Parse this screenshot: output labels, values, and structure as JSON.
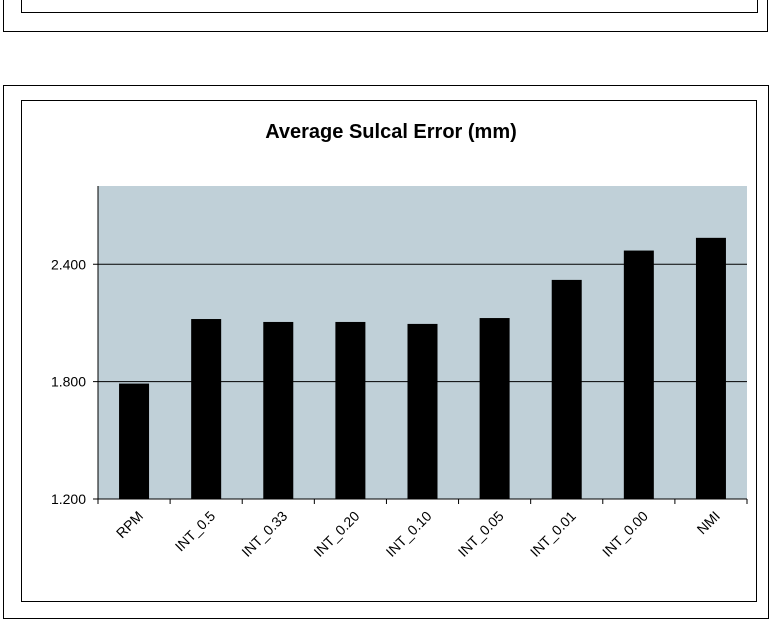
{
  "chart_data": {
    "type": "bar",
    "title": "Average Sulcal Error (mm)",
    "xlabel": "",
    "ylabel": "",
    "categories": [
      "RPM",
      "INT_0.5",
      "INT_0.33",
      "INT_0.20",
      "INT_0.10",
      "INT_0.05",
      "INT_0.01",
      "INT_0.00",
      "NMI"
    ],
    "values": [
      1.79,
      2.12,
      2.105,
      2.105,
      2.095,
      2.125,
      2.32,
      2.47,
      2.535
    ],
    "ylim": [
      1.2,
      2.8
    ],
    "yticks": [
      1.2,
      1.8,
      2.4
    ],
    "ytick_labels": [
      "1.200",
      "1.800",
      "2.400"
    ],
    "grid": true,
    "legend": "none",
    "colors": {
      "plot_background": "#c0d0d8",
      "bar": "#000000",
      "gridline": "#000000"
    }
  }
}
